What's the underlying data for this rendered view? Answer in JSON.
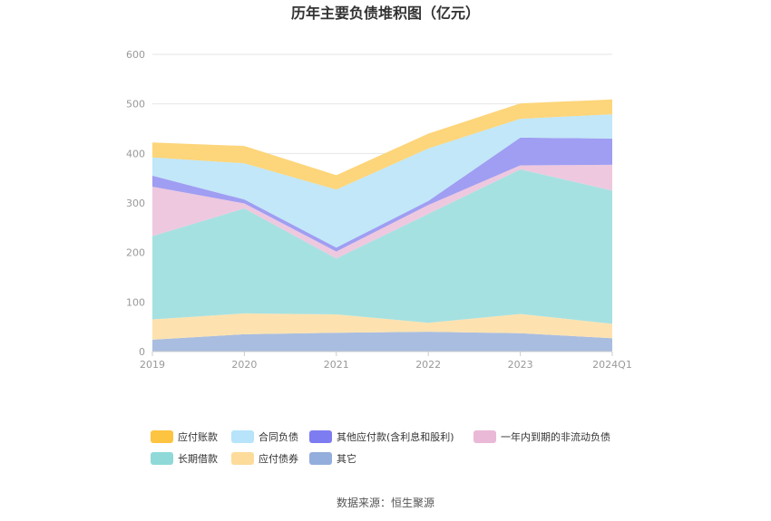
{
  "chart_data": {
    "type": "area",
    "stacked": true,
    "title": "历年主要负债堆积图（亿元）",
    "categories": [
      "2019",
      "2020",
      "2021",
      "2022",
      "2023",
      "2024Q1"
    ],
    "ylim": [
      0,
      600
    ],
    "yticks": [
      0,
      100,
      200,
      300,
      400,
      500,
      600
    ],
    "grid": true,
    "legend_position": "bottom",
    "series": [
      {
        "name": "其它",
        "color": "#a9bde0",
        "values": [
          24,
          35,
          38,
          40,
          37,
          27
        ]
      },
      {
        "name": "应付债券",
        "color": "#fde2b0",
        "values": [
          41,
          42,
          37,
          18,
          39,
          29
        ]
      },
      {
        "name": "长期借款",
        "color": "#a6e1e1",
        "values": [
          168,
          212,
          113,
          220,
          292,
          269
        ]
      },
      {
        "name": "一年内到期的非流动负债",
        "color": "#eec8df",
        "values": [
          100,
          10,
          14,
          18,
          8,
          52
        ]
      },
      {
        "name": "其他应付款(含利息和股利)",
        "color": "#9f9ef2",
        "values": [
          22,
          8,
          8,
          8,
          56,
          53
        ]
      },
      {
        "name": "合同负债",
        "color": "#c1e7f8",
        "values": [
          37,
          73,
          117,
          106,
          38,
          49
        ]
      },
      {
        "name": "应付账款",
        "color": "#fdd57a",
        "values": [
          30,
          35,
          29,
          30,
          31,
          30
        ]
      }
    ]
  },
  "legend": {
    "items": [
      {
        "name": "应付账款",
        "color": "#fdc441"
      },
      {
        "name": "合同负债",
        "color": "#b7e4fb"
      },
      {
        "name": "其他应付款(含利息和股利)",
        "color": "#7e7cf1"
      },
      {
        "name": "一年内到期的非流动负债",
        "color": "#eab9d7"
      },
      {
        "name": "长期借款",
        "color": "#8fd9d9"
      },
      {
        "name": "应付债券",
        "color": "#fddb9a"
      },
      {
        "name": "其它",
        "color": "#93aedc"
      }
    ]
  },
  "source": "数据来源：恒生聚源"
}
